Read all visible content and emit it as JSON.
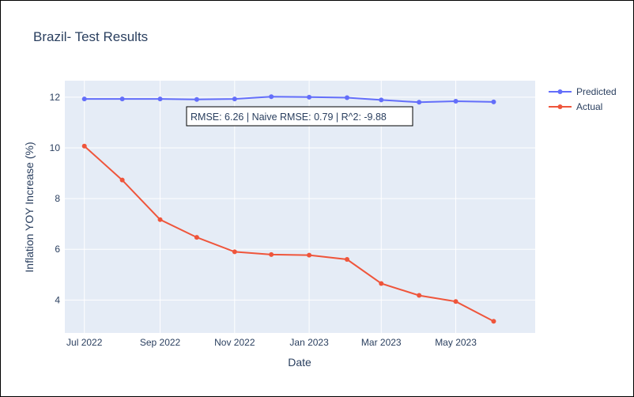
{
  "chart_data": {
    "type": "line",
    "title": "Brazil- Test Results",
    "xlabel": "Date",
    "ylabel": "Inflation YOY Increase (%)",
    "x": [
      "2022-07",
      "2022-08",
      "2022-09",
      "2022-10",
      "2022-11",
      "2022-12",
      "2023-01",
      "2023-02",
      "2023-03",
      "2023-04",
      "2023-05",
      "2023-06"
    ],
    "xticks": [
      {
        "date": "2022-07",
        "label": "Jul 2022"
      },
      {
        "date": "2022-09",
        "label": "Sep 2022"
      },
      {
        "date": "2022-11",
        "label": "Nov 2022"
      },
      {
        "date": "2023-01",
        "label": "Jan 2023"
      },
      {
        "date": "2023-03",
        "label": "Mar 2023"
      },
      {
        "date": "2023-05",
        "label": "May 2023"
      }
    ],
    "yticks": [
      4,
      6,
      8,
      10,
      12
    ],
    "ylim": [
      2.7,
      12.65
    ],
    "xlim": [
      "2022-06-15",
      "2023-07-05"
    ],
    "grid": true,
    "legend_position": "top-right",
    "series": [
      {
        "name": "Predicted",
        "color": "#636efa",
        "values": [
          11.93,
          11.93,
          11.93,
          11.91,
          11.93,
          12.02,
          12.0,
          11.98,
          11.89,
          11.8,
          11.84,
          11.81
        ]
      },
      {
        "name": "Actual",
        "color": "#ef553b",
        "values": [
          10.07,
          8.73,
          7.17,
          6.47,
          5.9,
          5.79,
          5.77,
          5.6,
          4.65,
          4.18,
          3.94,
          3.16
        ]
      }
    ],
    "annotation": "RMSE: 6.26 | Naive RMSE: 0.79 | R^2: -9.88"
  }
}
